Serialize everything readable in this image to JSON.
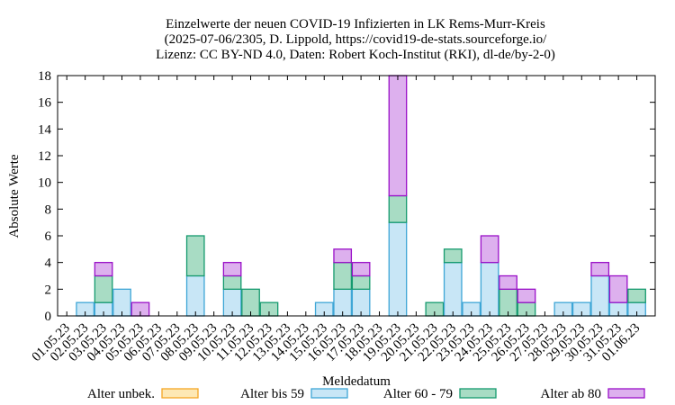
{
  "chart_data": {
    "type": "bar",
    "stacked": true,
    "title": [
      "Einzelwerte der neuen COVID-19 Infizierten in LK Rems-Murr-Kreis",
      "(2025-07-06/2305, D. Lippold, https://covid19-de-stats.sourceforge.io/",
      "Lizenz: CC BY-ND 4.0, Daten: Robert Koch-Institut (RKI), dl-de/by-2-0)"
    ],
    "xlabel": "Meldedatum",
    "ylabel": "Absolute Werte",
    "ylim": [
      0,
      18
    ],
    "yticks": [
      0,
      2,
      4,
      6,
      8,
      10,
      12,
      14,
      16,
      18
    ],
    "categories": [
      "01.05.23",
      "02.05.23",
      "03.05.23",
      "04.05.23",
      "05.05.23",
      "06.05.23",
      "07.05.23",
      "08.05.23",
      "09.05.23",
      "10.05.23",
      "11.05.23",
      "12.05.23",
      "13.05.23",
      "14.05.23",
      "15.05.23",
      "16.05.23",
      "17.05.23",
      "18.05.23",
      "19.05.23",
      "20.05.23",
      "21.05.23",
      "22.05.23",
      "23.05.23",
      "24.05.23",
      "25.05.23",
      "26.05.23",
      "27.05.23",
      "28.05.23",
      "29.05.23",
      "30.05.23",
      "31.05.23",
      "01.06.23"
    ],
    "series": [
      {
        "name": "Alter unbek.",
        "color": "#f5a623",
        "fill": "#fde8b4",
        "values": [
          0,
          0,
          0,
          0,
          0,
          0,
          0,
          0,
          0,
          0,
          0,
          0,
          0,
          0,
          0,
          0,
          0,
          0,
          0,
          0,
          0,
          0,
          0,
          0,
          0,
          0,
          0,
          0,
          0,
          0,
          0,
          0
        ]
      },
      {
        "name": "Alter bis 59",
        "color": "#3ea6d6",
        "fill": "#c8e6f6",
        "values": [
          0,
          1,
          1,
          2,
          0,
          0,
          0,
          3,
          0,
          2,
          0,
          0,
          0,
          0,
          1,
          2,
          2,
          0,
          7,
          0,
          0,
          4,
          1,
          4,
          0,
          0,
          0,
          1,
          1,
          3,
          1,
          1
        ]
      },
      {
        "name": "Alter 60 - 79",
        "color": "#159a6e",
        "fill": "#a8dcc4",
        "values": [
          0,
          0,
          2,
          0,
          0,
          0,
          0,
          3,
          0,
          1,
          2,
          1,
          0,
          0,
          0,
          2,
          1,
          0,
          2,
          0,
          1,
          1,
          0,
          0,
          2,
          1,
          0,
          0,
          0,
          0,
          0,
          1
        ]
      },
      {
        "name": "Alter ab 80",
        "color": "#9a10c8",
        "fill": "#ddb0ee",
        "values": [
          0,
          0,
          1,
          0,
          1,
          0,
          0,
          0,
          0,
          1,
          0,
          0,
          0,
          0,
          0,
          1,
          1,
          0,
          9,
          0,
          0,
          0,
          0,
          2,
          1,
          1,
          0,
          0,
          0,
          1,
          2,
          0
        ]
      }
    ],
    "legend_position": "bottom"
  }
}
